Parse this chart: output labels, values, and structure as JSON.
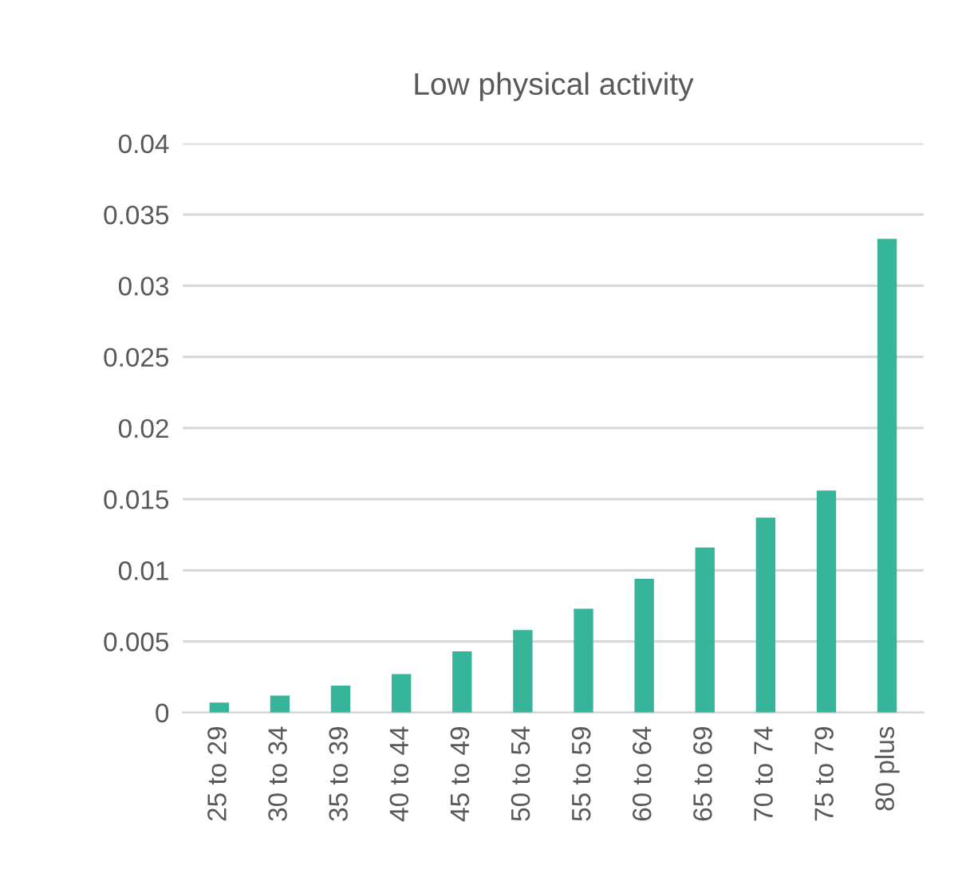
{
  "chart_data": {
    "type": "bar",
    "title": "Low physical activity",
    "categories": [
      "25 to 29",
      "30 to 34",
      "35 to 39",
      "40 to 44",
      "45 to 49",
      "50 to 54",
      "55 to 59",
      "60 to 64",
      "65 to 69",
      "70 to 74",
      "75 to 79",
      "80 plus"
    ],
    "values": [
      0.0007,
      0.0012,
      0.0019,
      0.0027,
      0.0043,
      0.0058,
      0.0073,
      0.0094,
      0.0116,
      0.0137,
      0.0156,
      0.0333
    ],
    "color": "#36b59b",
    "ylim": [
      0,
      0.04
    ],
    "yticks": [
      0,
      0.005,
      0.01,
      0.015,
      0.02,
      0.025,
      0.03,
      0.035,
      0.04
    ],
    "grid": "y"
  }
}
